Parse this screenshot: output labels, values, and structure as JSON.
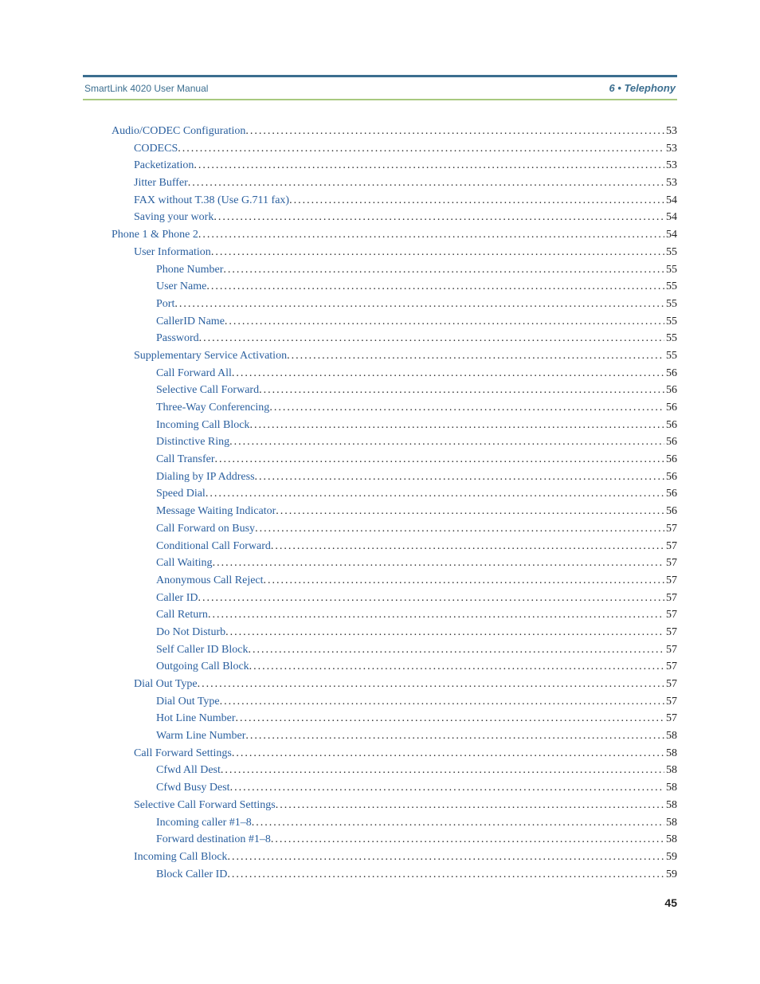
{
  "header": {
    "left": "SmartLink 4020 User Manual",
    "right": "6 • Telephony"
  },
  "page_number": "45",
  "styles": {
    "header_border_top_color": "#3b6e8f",
    "header_border_bottom_color": "#a8c97f",
    "link_color": "#2a5f9e",
    "text_color": "#222222",
    "header_text_color": "#3b6e8f"
  },
  "toc": [
    {
      "level": 0,
      "label": "Audio/CODEC Configuration",
      "page": "53"
    },
    {
      "level": 1,
      "label": "CODECS",
      "page": "53"
    },
    {
      "level": 1,
      "label": "Packetization",
      "page": "53"
    },
    {
      "level": 1,
      "label": "Jitter Buffer",
      "page": "53"
    },
    {
      "level": 1,
      "label": "FAX without T.38 (Use G.711 fax)",
      "page": "54"
    },
    {
      "level": 1,
      "label": "Saving your work",
      "page": "54"
    },
    {
      "level": 0,
      "label": "Phone 1 & Phone 2",
      "page": "54"
    },
    {
      "level": 1,
      "label": "User Information",
      "page": "55"
    },
    {
      "level": 2,
      "label": "Phone Number",
      "page": "55"
    },
    {
      "level": 2,
      "label": "User Name",
      "page": "55"
    },
    {
      "level": 2,
      "label": "Port",
      "page": "55"
    },
    {
      "level": 2,
      "label": "CallerID Name",
      "page": "55"
    },
    {
      "level": 2,
      "label": "Password",
      "page": "55"
    },
    {
      "level": 1,
      "label": "Supplementary Service Activation",
      "page": "55"
    },
    {
      "level": 2,
      "label": "Call Forward All",
      "page": "56"
    },
    {
      "level": 2,
      "label": "Selective Call Forward",
      "page": "56"
    },
    {
      "level": 2,
      "label": "Three-Way Conferencing",
      "page": "56"
    },
    {
      "level": 2,
      "label": "Incoming Call Block",
      "page": "56"
    },
    {
      "level": 2,
      "label": "Distinctive Ring",
      "page": "56"
    },
    {
      "level": 2,
      "label": "Call Transfer",
      "page": "56"
    },
    {
      "level": 2,
      "label": "Dialing by IP Address",
      "page": "56"
    },
    {
      "level": 2,
      "label": "Speed Dial",
      "page": "56"
    },
    {
      "level": 2,
      "label": "Message Waiting Indicator",
      "page": "56"
    },
    {
      "level": 2,
      "label": "Call Forward on Busy",
      "page": "57"
    },
    {
      "level": 2,
      "label": "Conditional Call Forward",
      "page": "57"
    },
    {
      "level": 2,
      "label": "Call Waiting",
      "page": "57"
    },
    {
      "level": 2,
      "label": "Anonymous Call Reject",
      "page": "57"
    },
    {
      "level": 2,
      "label": "Caller ID",
      "page": "57"
    },
    {
      "level": 2,
      "label": "Call Return",
      "page": "57"
    },
    {
      "level": 2,
      "label": "Do Not Disturb",
      "page": "57"
    },
    {
      "level": 2,
      "label": "Self Caller ID Block",
      "page": "57"
    },
    {
      "level": 2,
      "label": "Outgoing Call Block",
      "page": "57"
    },
    {
      "level": 1,
      "label": "Dial Out Type",
      "page": "57"
    },
    {
      "level": 2,
      "label": "Dial Out Type",
      "page": "57"
    },
    {
      "level": 2,
      "label": "Hot Line Number",
      "page": "57"
    },
    {
      "level": 2,
      "label": "Warm Line Number",
      "page": "58"
    },
    {
      "level": 1,
      "label": "Call Forward Settings",
      "page": "58"
    },
    {
      "level": 2,
      "label": "Cfwd All Dest",
      "page": "58"
    },
    {
      "level": 2,
      "label": "Cfwd Busy Dest",
      "page": "58"
    },
    {
      "level": 1,
      "label": "Selective Call Forward Settings",
      "page": "58"
    },
    {
      "level": 2,
      "label": "Incoming caller #1–8",
      "page": "58"
    },
    {
      "level": 2,
      "label": "Forward destination #1–8",
      "page": "58"
    },
    {
      "level": 1,
      "label": "Incoming Call Block",
      "page": "59"
    },
    {
      "level": 2,
      "label": "Block Caller ID",
      "page": "59"
    }
  ]
}
